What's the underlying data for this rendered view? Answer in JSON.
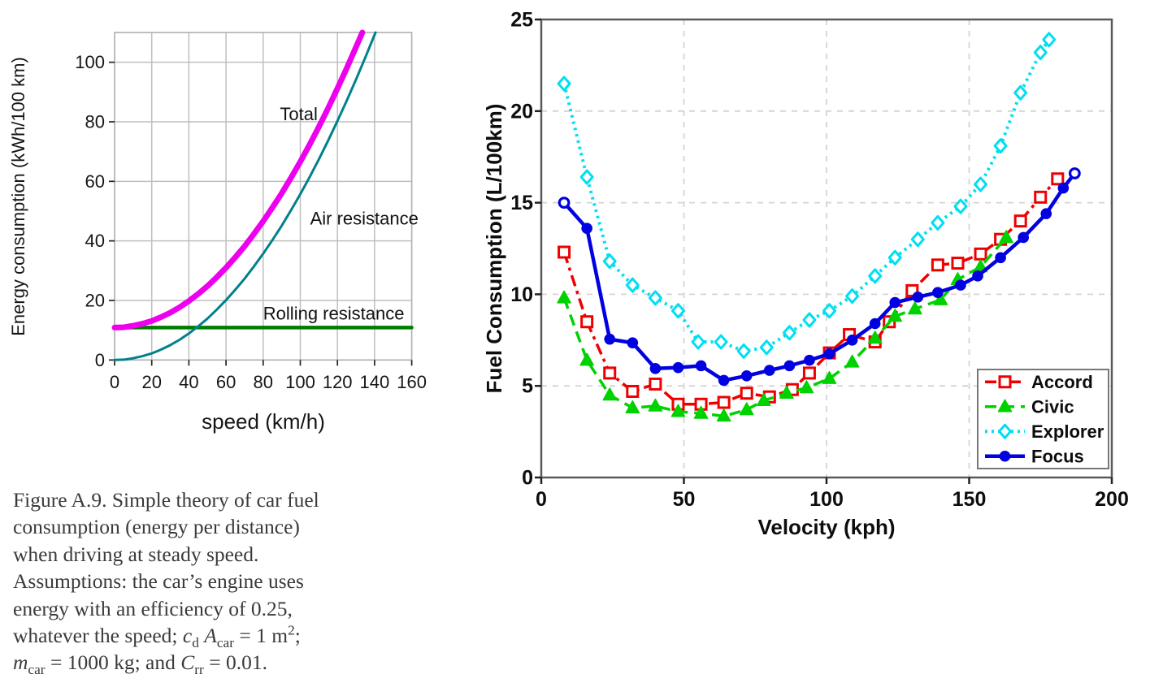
{
  "page": {
    "background": "#ffffff"
  },
  "figure_caption": {
    "lines": [
      [
        {
          "t": "Figure A.9. Simple theory of car fuel"
        }
      ],
      [
        {
          "t": "consumption (energy per distance)"
        }
      ],
      [
        {
          "t": "when driving at steady speed."
        }
      ],
      [
        {
          "t": "Assumptions: the car’s engine uses"
        }
      ],
      [
        {
          "t": "energy with an efficiency of 0.25,"
        }
      ],
      [
        {
          "t": "whatever the speed; "
        },
        {
          "i": "c"
        },
        {
          "sub": "d"
        },
        {
          "t": " "
        },
        {
          "i": "A"
        },
        {
          "sub": "car"
        },
        {
          "t": " = 1 m"
        },
        {
          "sup": "2"
        },
        {
          "t": ";"
        }
      ],
      [
        {
          "i": "m"
        },
        {
          "sub": "car"
        },
        {
          "t": " = 1000 kg; and "
        },
        {
          "i": "C"
        },
        {
          "sub": "rr"
        },
        {
          "t": " = 0.01."
        }
      ]
    ]
  },
  "chart_data": [
    {
      "id": "energy-consumption",
      "type": "line",
      "title": "",
      "xlabel": "speed (km/h)",
      "ylabel": "Energy consumption (kWh/100 km)",
      "xlim": [
        0,
        160
      ],
      "ylim": [
        0,
        110
      ],
      "xticks": [
        0,
        20,
        40,
        60,
        80,
        100,
        120,
        140,
        160
      ],
      "xtick_labels": [
        "0",
        "20",
        "40",
        "60",
        "80",
        "100",
        "120",
        "140",
        "160"
      ],
      "yticks": [
        0,
        20,
        40,
        60,
        80,
        100
      ],
      "ytick_labels": [
        "0",
        "20",
        "40",
        "60",
        "80",
        "100"
      ],
      "grid": "solid",
      "legend_position": "none",
      "series": [
        {
          "name": "Rolling resistance",
          "color": "#007d00",
          "width": 4.5,
          "dash": null,
          "marker": "none",
          "x": [
            0,
            160
          ],
          "y": [
            10.9,
            10.9
          ]
        },
        {
          "name": "Air resistance",
          "color": "#00818c",
          "width": 3,
          "dash": null,
          "marker": "none",
          "x": [
            0,
            5,
            10,
            15,
            20,
            25,
            30,
            35,
            40,
            45,
            50,
            55,
            60,
            65,
            70,
            75,
            80,
            85,
            90,
            95,
            100,
            105,
            110,
            115,
            120,
            125,
            130,
            135,
            140.5
          ],
          "y": [
            0,
            0.1,
            0.6,
            1.3,
            2.2,
            3.5,
            5.0,
            6.8,
            8.9,
            11.3,
            13.9,
            16.9,
            20.1,
            23.6,
            27.3,
            31.4,
            35.7,
            40.3,
            45.1,
            50.3,
            55.7,
            61.4,
            67.4,
            73.7,
            80.3,
            87.1,
            94.2,
            101.6,
            110
          ]
        },
        {
          "name": "Total",
          "color": "#ee00ee",
          "width": 7,
          "dash": null,
          "marker": "none",
          "x": [
            0,
            5,
            10,
            15,
            20,
            25,
            30,
            35,
            40,
            45,
            50,
            55,
            60,
            65,
            70,
            75,
            80,
            85,
            90,
            95,
            100,
            105,
            110,
            115,
            120,
            125,
            130,
            133.4
          ],
          "y": [
            10.9,
            11.0,
            11.5,
            12.2,
            13.1,
            14.4,
            15.9,
            17.7,
            19.8,
            22.2,
            24.8,
            27.8,
            31.0,
            34.5,
            38.2,
            42.3,
            46.6,
            51.2,
            56.0,
            61.2,
            66.6,
            72.3,
            78.3,
            84.6,
            91.2,
            98.0,
            105.1,
            110
          ]
        }
      ],
      "annotations": [
        {
          "text": "Total",
          "x": 89,
          "y": 80.5
        },
        {
          "text": "Air resistance",
          "x": 105.3,
          "y": 45.5
        },
        {
          "text": "Rolling resistance",
          "x": 80,
          "y": 13.6
        }
      ]
    },
    {
      "id": "fuel-consumption",
      "type": "line",
      "title": "",
      "xlabel": "Velocity (kph)",
      "ylabel": "Fuel Consumption (L/100km)",
      "xlim": [
        0,
        200
      ],
      "ylim": [
        0,
        25
      ],
      "xticks": [
        0,
        50,
        100,
        150,
        200
      ],
      "xtick_labels": [
        "0",
        "50",
        "100",
        "150",
        "200"
      ],
      "yticks": [
        0,
        5,
        10,
        15,
        20,
        25
      ],
      "ytick_labels": [
        "0",
        "5",
        "10",
        "15",
        "20",
        "25"
      ],
      "grid": "dashed",
      "legend_position": "lower right",
      "series": [
        {
          "name": "Accord",
          "color": "#ee0000",
          "width": 3.5,
          "dash": "14 6 4 6",
          "marker": "square",
          "x": [
            8,
            16,
            24,
            32,
            40,
            48,
            56,
            64,
            72,
            80,
            88,
            94,
            101,
            108,
            117,
            122,
            130,
            139,
            146,
            154,
            161,
            168,
            175,
            181
          ],
          "y": [
            12.3,
            8.5,
            5.7,
            4.7,
            5.1,
            4.0,
            4.0,
            4.1,
            4.6,
            4.4,
            4.8,
            5.7,
            6.8,
            7.8,
            7.4,
            8.5,
            10.2,
            11.6,
            11.7,
            12.2,
            13.0,
            14.0,
            15.3,
            16.3
          ]
        },
        {
          "name": "Civic",
          "color": "#00d200",
          "width": 3.5,
          "dash": "14 8",
          "marker": "triangle",
          "x": [
            8,
            16,
            24,
            32,
            40,
            48,
            56,
            64,
            72,
            78,
            86,
            93,
            101,
            109,
            117,
            124,
            131,
            140,
            146,
            154,
            163
          ],
          "y": [
            9.8,
            6.4,
            4.5,
            3.8,
            3.9,
            3.6,
            3.5,
            3.35,
            3.7,
            4.2,
            4.6,
            4.9,
            5.4,
            6.3,
            7.6,
            8.8,
            9.2,
            9.7,
            10.8,
            11.5,
            13.1
          ]
        },
        {
          "name": "Explorer",
          "color": "#00dff2",
          "width": 4,
          "dash": "3 5",
          "marker": "diamond",
          "x": [
            8,
            16,
            24,
            32,
            40,
            48,
            55,
            63,
            71,
            79,
            87,
            94,
            101,
            109,
            117,
            124,
            132,
            139,
            147,
            154,
            161,
            168,
            175,
            178
          ],
          "y": [
            21.5,
            16.4,
            11.8,
            10.5,
            9.8,
            9.1,
            7.4,
            7.4,
            6.9,
            7.1,
            7.9,
            8.6,
            9.1,
            9.9,
            11.0,
            12.0,
            13.0,
            13.9,
            14.8,
            16.0,
            18.1,
            21.0,
            23.2,
            23.9
          ]
        },
        {
          "name": "Focus",
          "color": "#0000e0",
          "width": 4.5,
          "dash": null,
          "marker": "circle",
          "open_ends": true,
          "x": [
            8,
            16,
            24,
            32,
            40,
            48,
            56,
            64,
            72,
            80,
            87,
            94,
            101,
            109,
            117,
            124,
            132,
            139,
            147,
            153,
            161,
            169,
            177,
            183,
            187
          ],
          "y": [
            15.0,
            13.6,
            7.55,
            7.35,
            5.95,
            6.0,
            6.1,
            5.3,
            5.55,
            5.85,
            6.1,
            6.4,
            6.75,
            7.5,
            8.4,
            9.55,
            9.85,
            10.1,
            10.5,
            11.0,
            12.0,
            13.1,
            14.4,
            15.8,
            16.6
          ]
        }
      ],
      "legend_labels": [
        "Accord",
        "Civic",
        "Explorer",
        "Focus"
      ]
    }
  ]
}
